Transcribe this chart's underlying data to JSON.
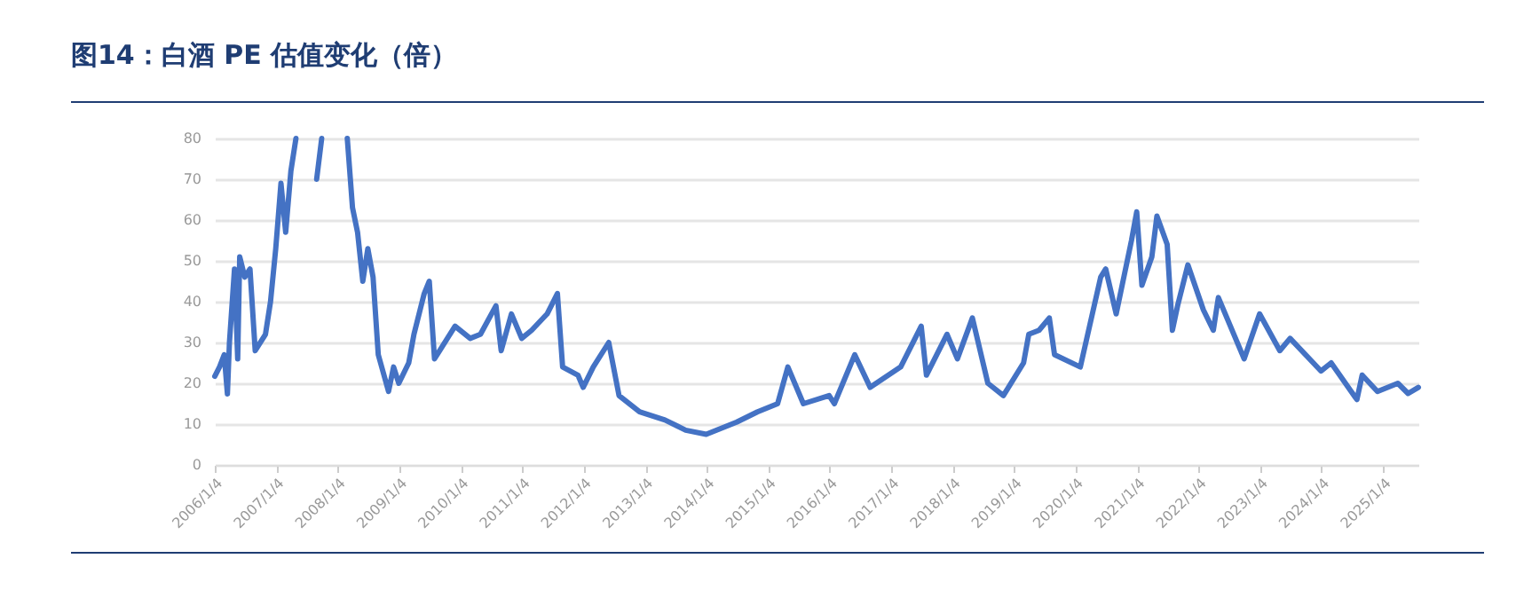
{
  "chart_data": {
    "type": "line",
    "title": "图14：白酒 PE 估值变化（倍）",
    "x": [
      "2006-01-04",
      "2006-02",
      "2006-03",
      "2006-03-20",
      "2006-04",
      "2006-05",
      "2006-05-20",
      "2006-06",
      "2006-07",
      "2006-08",
      "2006-09",
      "2006-11",
      "2006-12",
      "2007-01",
      "2007-02",
      "2007-03",
      "2007-04",
      "2007-05",
      "2007-06",
      "2007-08",
      "2007-09",
      "2007-10",
      "2007-11",
      "2007-12",
      "2008-03",
      "2008-04",
      "2008-05",
      "2008-06",
      "2008-07",
      "2008-08",
      "2008-09",
      "2008-11",
      "2008-12",
      "2009-01",
      "2009-03",
      "2009-04",
      "2009-06",
      "2009-07",
      "2009-08",
      "2009-09",
      "2009-12",
      "2010-03",
      "2010-05",
      "2010-08",
      "2010-09",
      "2010-11",
      "2011-01",
      "2011-03",
      "2011-06",
      "2011-08",
      "2011-09",
      "2011-12",
      "2012-01",
      "2012-03",
      "2012-06",
      "2012-08",
      "2012-12",
      "2013-05",
      "2013-09",
      "2014-01",
      "2014-07",
      "2014-11",
      "2015-03",
      "2015-05",
      "2015-08",
      "2016-01",
      "2016-02",
      "2016-06",
      "2016-09",
      "2017-03",
      "2017-07",
      "2017-08",
      "2017-12",
      "2018-02",
      "2018-05",
      "2018-08",
      "2018-11",
      "2019-03",
      "2019-04",
      "2019-06",
      "2019-08",
      "2019-09",
      "2020-02",
      "2020-06",
      "2020-07",
      "2020-09",
      "2020-12",
      "2021-01",
      "2021-02",
      "2021-04",
      "2021-05",
      "2021-07",
      "2021-08",
      "2021-09",
      "2021-11",
      "2022-02",
      "2022-04",
      "2022-05",
      "2022-10",
      "2023-01",
      "2023-05",
      "2023-07",
      "2024-01",
      "2024-03",
      "2024-08",
      "2024-09",
      "2024-12",
      "2025-04",
      "2025-06",
      "2025-08"
    ],
    "series": [
      {
        "color": "#4472c4",
        "values": [
          21.7,
          24,
          27,
          17.4,
          30,
          48,
          26,
          51,
          46,
          48,
          28,
          32,
          40,
          53,
          69,
          57,
          72,
          80,
          null,
          null,
          70,
          80,
          null,
          null,
          80,
          63,
          57,
          45,
          53,
          46,
          27,
          18,
          24,
          20,
          25,
          32,
          42,
          45,
          26,
          28,
          34,
          31,
          32,
          39,
          28,
          37,
          31,
          33,
          37,
          42,
          24,
          22,
          19,
          24,
          30,
          17,
          13,
          11,
          8.5,
          7.5,
          10.5,
          13,
          15,
          24,
          15,
          17,
          15,
          27,
          19,
          24,
          34,
          22,
          32,
          26,
          36,
          20,
          17,
          25,
          32,
          33,
          36,
          27,
          24,
          46,
          48,
          37,
          55,
          62,
          44,
          51,
          61,
          54,
          33,
          39,
          49,
          38,
          33,
          41,
          26,
          37,
          28,
          31,
          23,
          25,
          16,
          22,
          18,
          20,
          17.5,
          19
        ]
      }
    ],
    "xlim": [
      "2006-01-04",
      "2025-08"
    ],
    "xticks": [
      {
        "value": "2006-01-04",
        "label": "2006/1/4"
      },
      {
        "value": "2007-01-04",
        "label": "2007/1/4"
      },
      {
        "value": "2008-01-04",
        "label": "2008/1/4"
      },
      {
        "value": "2009-01-04",
        "label": "2009/1/4"
      },
      {
        "value": "2010-01-04",
        "label": "2010/1/4"
      },
      {
        "value": "2011-01-04",
        "label": "2011/1/4"
      },
      {
        "value": "2012-01-04",
        "label": "2012/1/4"
      },
      {
        "value": "2013-01-04",
        "label": "2013/1/4"
      },
      {
        "value": "2014-01-04",
        "label": "2014/1/4"
      },
      {
        "value": "2015-01-04",
        "label": "2015/1/4"
      },
      {
        "value": "2016-01-04",
        "label": "2016/1/4"
      },
      {
        "value": "2017-01-04",
        "label": "2017/1/4"
      },
      {
        "value": "2018-01-04",
        "label": "2018/1/4"
      },
      {
        "value": "2019-01-04",
        "label": "2019/1/4"
      },
      {
        "value": "2020-01-04",
        "label": "2020/1/4"
      },
      {
        "value": "2021-01-04",
        "label": "2021/1/4"
      },
      {
        "value": "2022-01-04",
        "label": "2022/1/4"
      },
      {
        "value": "2023-01-04",
        "label": "2023/1/4"
      },
      {
        "value": "2024-01-04",
        "label": "2024/1/4"
      },
      {
        "value": "2025-01-04",
        "label": "2025/1/4"
      }
    ],
    "ylim": [
      0,
      80
    ],
    "yticks": [
      0,
      10,
      20,
      30,
      40,
      50,
      60,
      70,
      80
    ],
    "grid": "y",
    "marker": "none",
    "line_style": "solid"
  }
}
